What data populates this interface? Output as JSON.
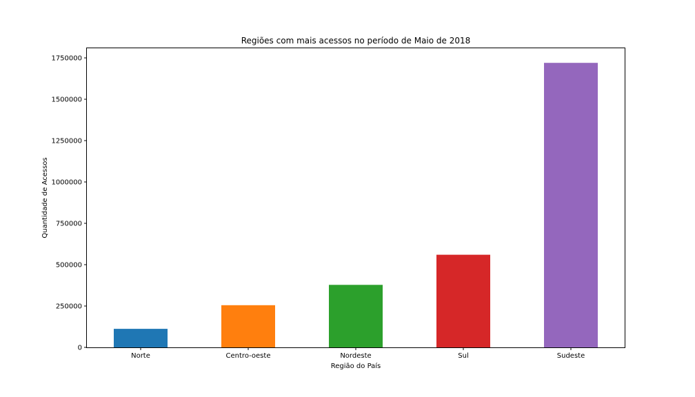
{
  "chart_data": {
    "type": "bar",
    "title": "Regiões com mais acessos no período de Maio de 2018",
    "xlabel": "Região do País",
    "ylabel": "Quantidade de Acessos",
    "categories": [
      "Norte",
      "Centro-oeste",
      "Nordeste",
      "Sul",
      "Sudeste"
    ],
    "values": [
      112000,
      255000,
      378000,
      560000,
      1720000
    ],
    "colors": [
      "#1f77b4",
      "#ff7f0e",
      "#2ca02c",
      "#d62728",
      "#9467bd"
    ],
    "ylim": [
      0,
      1750000
    ],
    "yticks": [
      0,
      250000,
      500000,
      750000,
      1000000,
      1250000,
      1500000,
      1750000
    ],
    "ytick_labels": [
      "0",
      "250000",
      "500000",
      "750000",
      "1000000",
      "1250000",
      "1500000",
      "1750000"
    ],
    "grid": false,
    "legend": false
  }
}
